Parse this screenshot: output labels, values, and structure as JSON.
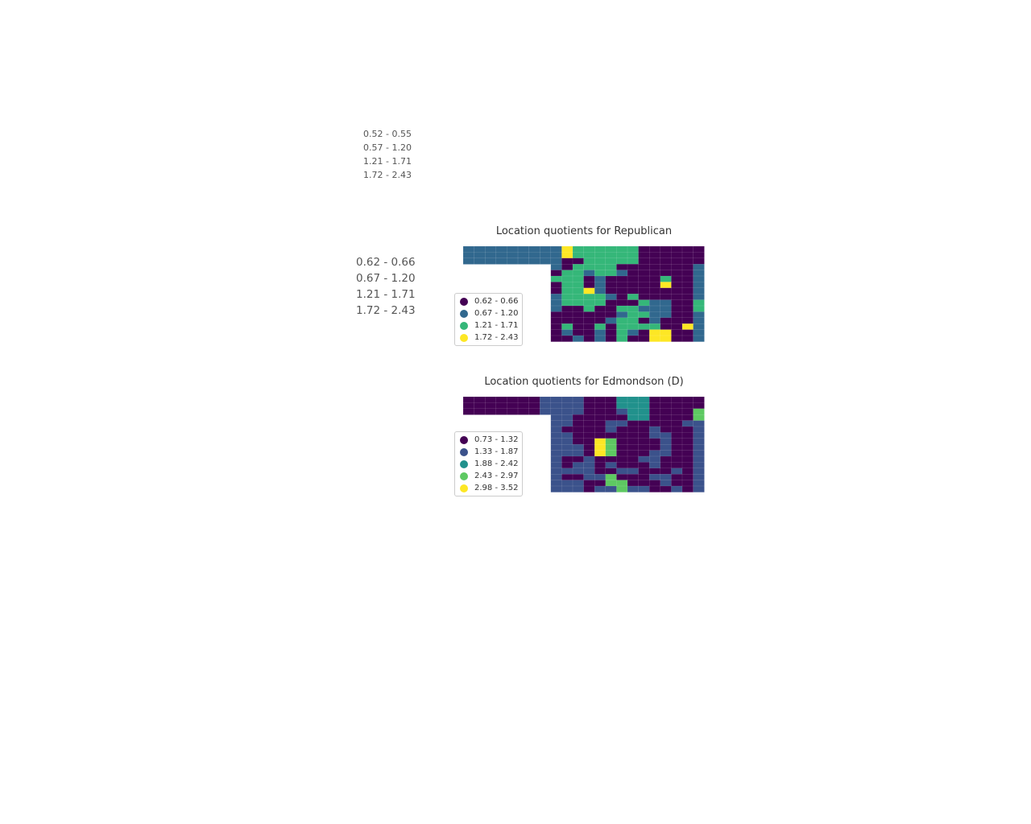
{
  "stray_labels_small": [
    "0.52 - 0.55",
    "0.57 - 1.20",
    "1.21 - 1.71",
    "1.72 - 2.43"
  ],
  "stray_labels_large": [
    "0.62 - 0.66",
    "0.67 - 1.20",
    "1.21 - 1.71",
    "1.72 - 2.43"
  ],
  "maps": [
    {
      "title": "Location quotients for Republican",
      "legend": [
        {
          "label": "0.62 - 0.66",
          "color": "#440154"
        },
        {
          "label": "0.67 - 1.20",
          "color": "#31688e"
        },
        {
          "label": "1.21 - 1.71",
          "color": "#35b779"
        },
        {
          "label": "1.72 - 2.43",
          "color": "#fde725"
        }
      ],
      "cells": [
        "1111111113222222000000",
        "1111111113222222000000",
        "1111111110022222000000",
        "XXXXXXXX10222200000001",
        "XXXXXXXX02212210000001",
        "XXXXXXXX22201000002001",
        "XXXXXXXX02201000003001",
        "XXXXXXXX02231000000001",
        "XXXXXXXX12222102000001",
        "XXXXXXXX12222000211002",
        "XXXXXXXX10020022111002",
        "XXXXXXXX00000012211001",
        "XXXXXXXX00000122010001",
        "XXXXXXXX02002022220031",
        "XXXXXXXX01001021033001",
        "XXXXXXXX00101020033001"
      ]
    },
    {
      "title": "Location quotients for Edmondson (D)",
      "legend": [
        {
          "label": "0.73 - 1.32",
          "color": "#440154"
        },
        {
          "label": "1.33 - 1.87",
          "color": "#3b528b"
        },
        {
          "label": "1.88 - 2.42",
          "color": "#21918c"
        },
        {
          "label": "2.43 - 2.97",
          "color": "#5ec962"
        },
        {
          "label": "2.98 - 3.52",
          "color": "#fde725"
        }
      ],
      "cells": [
        "0000000111100022200000",
        "0000000111100022200000",
        "0000000111100012200003",
        "XXXXXXXX11000002200003",
        "XXXXXXXX11000110000011",
        "XXXXXXXX10000100010001",
        "XXXXXXXX11000000011001",
        "XXXXXXXX11004300001001",
        "XXXXXXXX11104300001001",
        "XXXXXXXX11104300011001",
        "XXXXXXXX10010000110001",
        "XXXXXXXX10110100010001",
        "XXXXXXXX11110011000101",
        "XXXXXXXX10011300011001",
        "XXXXXXXX11100330001001",
        "XXXXXXXX11101131100101"
      ]
    }
  ]
}
